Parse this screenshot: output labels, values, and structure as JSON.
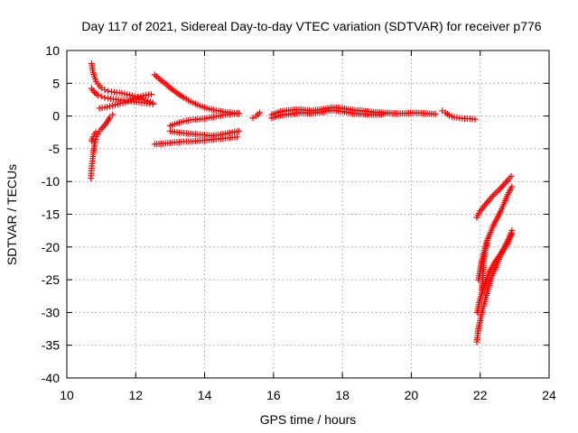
{
  "chart_data": {
    "type": "scatter",
    "title": "Day 117 of 2021, Sidereal Day-to-day VTEC variation (SDTVAR) for receiver p776",
    "xlabel": "GPS time / hours",
    "ylabel": "SDTVAR / TECUs",
    "xlim": [
      10,
      24
    ],
    "ylim": [
      -40,
      10
    ],
    "xticks": [
      "10",
      "12",
      "14",
      "16",
      "18",
      "20",
      "22",
      "24"
    ],
    "yticks": [
      "10",
      "5",
      "0",
      "-5",
      "-10",
      "-15",
      "-20",
      "-25",
      "-30",
      "-35",
      "-40"
    ],
    "grid": true,
    "marker": "+",
    "color": "#ff0000",
    "series": [
      {
        "x": [
          10.72,
          10.75,
          10.8,
          10.85,
          10.9,
          11.0,
          11.1,
          11.2,
          11.3,
          11.45,
          11.6,
          11.75,
          11.9,
          12.05,
          12.2,
          12.35,
          12.5
        ],
        "y": [
          8.0,
          7.0,
          6.0,
          5.3,
          4.9,
          4.3,
          4.0,
          3.8,
          3.7,
          3.6,
          3.5,
          3.3,
          3.1,
          2.9,
          2.6,
          2.3,
          2.0
        ]
      },
      {
        "x": [
          10.72,
          10.8,
          10.9,
          11.0,
          11.1,
          11.2,
          11.35,
          11.5,
          11.65,
          11.8,
          11.95,
          12.1,
          12.25,
          12.4,
          12.5
        ],
        "y": [
          4.2,
          3.6,
          3.2,
          3.0,
          2.8,
          2.7,
          2.6,
          2.5,
          2.4,
          2.3,
          2.2,
          2.1,
          2.0,
          1.9,
          1.8
        ]
      },
      {
        "x": [
          10.95,
          11.1,
          11.25,
          11.4,
          11.55,
          11.7,
          11.85,
          12.0,
          12.15,
          12.3,
          12.45
        ],
        "y": [
          1.2,
          1.3,
          1.5,
          1.7,
          1.9,
          2.1,
          2.4,
          2.7,
          3.0,
          3.2,
          3.3
        ]
      },
      {
        "x": [
          10.7,
          10.72,
          10.75,
          10.78,
          10.82,
          10.86,
          10.9,
          10.95,
          11.0,
          11.08,
          11.16,
          11.25,
          11.33
        ],
        "y": [
          -9.5,
          -8.0,
          -6.5,
          -5.2,
          -4.0,
          -3.2,
          -2.8,
          -2.3,
          -2.0,
          -1.5,
          -1.0,
          -0.2,
          0.2
        ]
      },
      {
        "x": [
          10.72,
          10.76,
          10.8,
          10.84
        ],
        "y": [
          -3.8,
          -3.2,
          -2.8,
          -2.5
        ]
      },
      {
        "x": [
          12.55,
          12.7,
          12.85,
          13.0,
          13.2,
          13.4,
          13.6,
          13.8,
          14.0,
          14.2,
          14.4,
          14.6,
          14.8,
          15.0
        ],
        "y": [
          6.3,
          5.6,
          5.0,
          4.3,
          3.5,
          2.8,
          2.2,
          1.7,
          1.3,
          1.0,
          0.8,
          0.6,
          0.5,
          0.4
        ]
      },
      {
        "x": [
          13.0,
          13.2,
          13.4,
          13.6,
          13.8,
          14.0,
          14.2,
          14.4,
          14.6,
          14.8,
          15.0
        ],
        "y": [
          -1.5,
          -1.1,
          -0.8,
          -0.6,
          -0.5,
          -0.4,
          -0.2,
          0.0,
          0.2,
          0.3,
          0.4
        ]
      },
      {
        "x": [
          13.0,
          13.2,
          13.4,
          13.6,
          13.8,
          14.0,
          14.2,
          14.4,
          14.6,
          14.8,
          15.0
        ],
        "y": [
          -2.3,
          -2.5,
          -2.6,
          -2.7,
          -2.8,
          -2.9,
          -3.0,
          -2.9,
          -2.7,
          -2.5,
          -2.3
        ]
      },
      {
        "x": [
          12.55,
          12.8,
          13.0,
          13.2,
          13.4,
          13.6,
          13.8,
          14.0,
          14.2,
          14.4,
          14.6,
          14.8,
          14.95
        ],
        "y": [
          -4.3,
          -4.2,
          -4.1,
          -4.0,
          -3.9,
          -3.9,
          -3.8,
          -3.7,
          -3.6,
          -3.5,
          -3.4,
          -3.3,
          -3.2
        ]
      },
      {
        "x": [
          15.4,
          15.5,
          15.6
        ],
        "y": [
          -0.3,
          0.0,
          0.5
        ]
      },
      {
        "x": [
          15.95,
          16.2,
          16.5,
          16.8,
          17.1,
          17.4,
          17.7,
          18.0,
          18.3,
          18.6,
          18.9,
          19.2,
          19.5,
          19.8,
          20.1,
          20.4,
          20.7
        ],
        "y": [
          0.2,
          0.7,
          0.9,
          1.0,
          0.8,
          1.0,
          1.3,
          1.2,
          0.9,
          0.8,
          0.6,
          0.5,
          0.4,
          0.4,
          0.5,
          0.4,
          0.3
        ]
      },
      {
        "x": [
          15.95,
          16.2,
          16.5,
          16.8,
          17.1,
          17.4,
          17.7,
          18.0,
          18.3,
          18.6,
          18.9,
          19.2
        ],
        "y": [
          -0.3,
          0.1,
          0.3,
          0.5,
          0.4,
          0.6,
          0.9,
          0.7,
          0.4,
          0.3,
          0.2,
          0.3
        ]
      },
      {
        "x": [
          20.9,
          21.0,
          21.1,
          21.25,
          21.4,
          21.55,
          21.7,
          21.85
        ],
        "y": [
          0.8,
          0.5,
          0.1,
          -0.2,
          -0.3,
          -0.4,
          -0.4,
          -0.5
        ]
      },
      {
        "x": [
          21.9,
          22.0,
          22.2,
          22.4,
          22.6,
          22.8,
          22.9
        ],
        "y": [
          -15.5,
          -14.5,
          -13.2,
          -12.0,
          -11.0,
          -9.8,
          -9.2
        ]
      },
      {
        "x": [
          21.95,
          22.05,
          22.2,
          22.4,
          22.6,
          22.8,
          22.92
        ],
        "y": [
          -25.0,
          -22.0,
          -19.0,
          -16.5,
          -14.5,
          -12.0,
          -10.8
        ]
      },
      {
        "x": [
          21.9,
          21.95,
          22.05,
          22.15,
          22.3,
          22.5,
          22.7,
          22.85,
          22.92
        ],
        "y": [
          -34.5,
          -32.5,
          -30.0,
          -28.0,
          -25.0,
          -22.5,
          -20.0,
          -18.5,
          -17.5
        ]
      },
      {
        "x": [
          21.92,
          21.97,
          22.05,
          22.15,
          22.25,
          22.4,
          22.6,
          22.8,
          22.92
        ],
        "y": [
          -30.0,
          -28.5,
          -27.0,
          -25.5,
          -24.0,
          -22.5,
          -21.0,
          -19.5,
          -18.0
        ]
      },
      {
        "x": [
          22.05,
          22.1,
          22.15,
          22.2
        ],
        "y": [
          -26.5,
          -22.5,
          -20.5,
          -19.5
        ]
      }
    ]
  }
}
